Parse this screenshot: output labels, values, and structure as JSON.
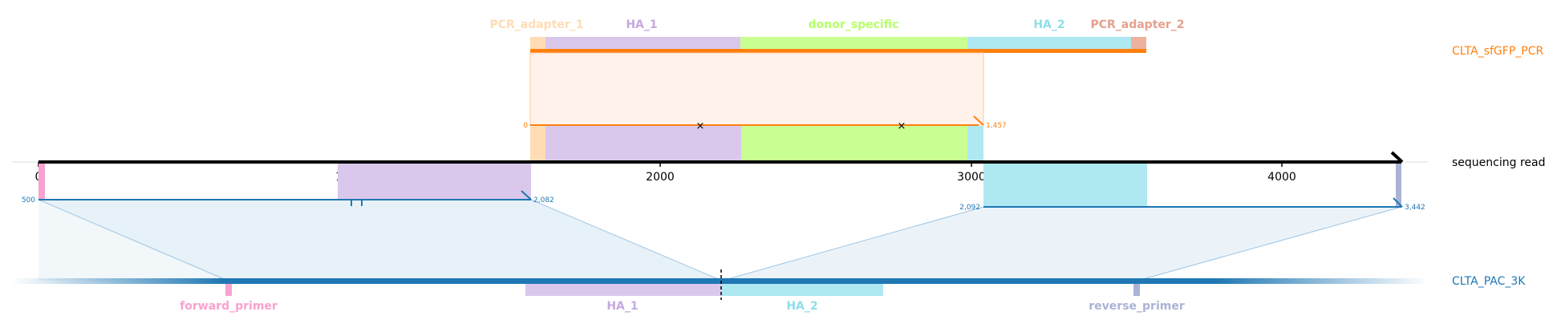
{
  "reference": {
    "name": "CLTA_sfGFP_PCR",
    "color": "#ff7f0e",
    "features": [
      {
        "name": "PCR_adapter_1",
        "color": "#ffdcb4"
      },
      {
        "name": "HA_1",
        "color": "#c5a8df"
      },
      {
        "name": "donor_specific",
        "color": "#b6ff6a"
      },
      {
        "name": "HA_2",
        "color": "#8ddfe9"
      },
      {
        "name": "PCR_adapter_2",
        "color": "#e5a18c"
      }
    ],
    "alignment": {
      "start_label": "0",
      "end_label": "1,457"
    },
    "mismatches": [
      "×",
      "×"
    ]
  },
  "read": {
    "name": "sequencing read",
    "ticks": [
      "0",
      "1000",
      "2000",
      "3000",
      "4000"
    ]
  },
  "target": {
    "name": "CLTA_PAC_3K",
    "color": "#1f77b4",
    "features": [
      {
        "name": "forward_primer",
        "color": "#f7a2cf"
      },
      {
        "name": "HA_1",
        "color": "#c5a8df"
      },
      {
        "name": "HA_2",
        "color": "#8ddfe9"
      },
      {
        "name": "reverse_primer",
        "color": "#aab3d6"
      }
    ],
    "left_alignment": {
      "start_label": "500",
      "end_label": "2,082"
    },
    "right_alignment": {
      "start_label": "2,092",
      "end_label": "3,442"
    }
  }
}
